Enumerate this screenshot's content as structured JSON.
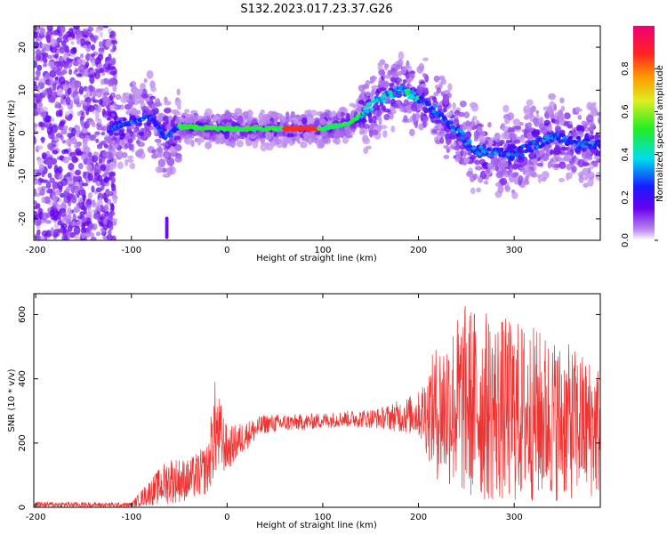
{
  "title": "S132.2023.017.23.37.G26",
  "colors": {
    "snr_line": "#ee3333",
    "spectrum_palette": "rainbow (purple-blue-cyan-green-yellow-orange-red-magenta)"
  },
  "chart_data": [
    {
      "type": "heatmap",
      "title": "S132.2023.017.23.37.G26",
      "xlabel": "Height of straight line (km)",
      "ylabel": "Frequency (Hz)",
      "xlim": [
        -202,
        390
      ],
      "ylim": [
        -25,
        25
      ],
      "xticks": [
        -200,
        -100,
        0,
        100,
        200,
        300
      ],
      "yticks": [
        -20,
        -10,
        0,
        10,
        20
      ],
      "grid": false,
      "colorbar": {
        "label": "Normalized spectral amplitude",
        "range": [
          0.0,
          1.0
        ],
        "ticks": [
          "0.0",
          "0.2",
          "0.4",
          "0.6",
          "0.8"
        ]
      },
      "ridge": {
        "description_points": [
          {
            "x": -120,
            "y": 1
          },
          {
            "x": -80,
            "y": 4
          },
          {
            "x": -65,
            "y": -1
          },
          {
            "x": -50,
            "y": 1.5
          },
          {
            "x": 0,
            "y": 1
          },
          {
            "x": 100,
            "y": 1
          },
          {
            "x": 130,
            "y": 2.5
          },
          {
            "x": 160,
            "y": 8
          },
          {
            "x": 185,
            "y": 10
          },
          {
            "x": 220,
            "y": 5
          },
          {
            "x": 260,
            "y": -4
          },
          {
            "x": 300,
            "y": -5
          },
          {
            "x": 340,
            "y": -1
          },
          {
            "x": 390,
            "y": -3
          }
        ]
      }
    },
    {
      "type": "line",
      "xlabel": "Height of straight line (km)",
      "ylabel": "SNR (10 * v/v)",
      "xlim": [
        -202,
        390
      ],
      "ylim": [
        0,
        665
      ],
      "xticks": [
        -200,
        -100,
        0,
        100,
        200,
        300
      ],
      "yticks": [
        0,
        200,
        400,
        600
      ],
      "grid": false,
      "envelope": [
        {
          "x": -202,
          "low": 0,
          "high": 18
        },
        {
          "x": -100,
          "low": 0,
          "high": 15
        },
        {
          "x": -80,
          "low": 5,
          "high": 90
        },
        {
          "x": -60,
          "low": 10,
          "high": 160
        },
        {
          "x": -40,
          "low": 20,
          "high": 150
        },
        {
          "x": -20,
          "low": 40,
          "high": 200
        },
        {
          "x": -13,
          "low": 90,
          "high": 400
        },
        {
          "x": 0,
          "low": 110,
          "high": 250
        },
        {
          "x": 20,
          "low": 180,
          "high": 270
        },
        {
          "x": 40,
          "low": 230,
          "high": 290
        },
        {
          "x": 80,
          "low": 240,
          "high": 290
        },
        {
          "x": 120,
          "low": 250,
          "high": 300
        },
        {
          "x": 160,
          "low": 245,
          "high": 310
        },
        {
          "x": 200,
          "low": 220,
          "high": 360
        },
        {
          "x": 220,
          "low": 80,
          "high": 520
        },
        {
          "x": 250,
          "low": 20,
          "high": 640
        },
        {
          "x": 280,
          "low": 10,
          "high": 600
        },
        {
          "x": 310,
          "low": 10,
          "high": 580
        },
        {
          "x": 350,
          "low": 20,
          "high": 520
        },
        {
          "x": 390,
          "low": 30,
          "high": 450
        }
      ]
    }
  ]
}
